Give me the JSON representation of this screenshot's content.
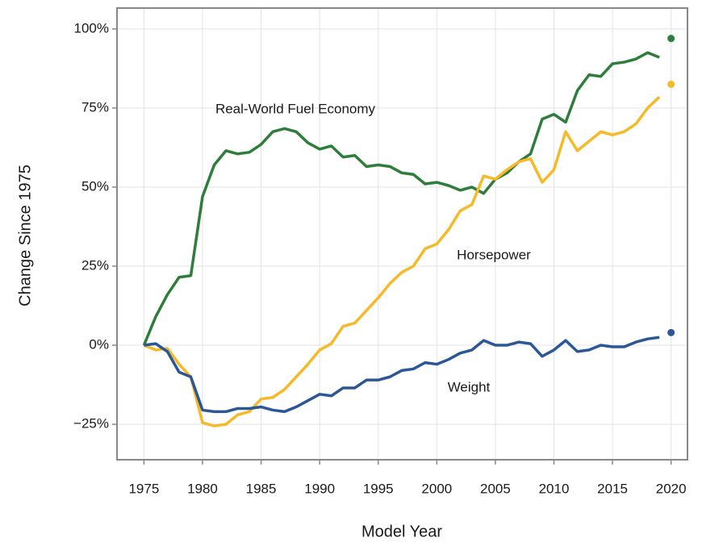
{
  "chart_data": {
    "type": "line",
    "xlabel": "Model Year",
    "ylabel": "Change Since 1975",
    "x": [
      1975,
      1976,
      1977,
      1978,
      1979,
      1980,
      1981,
      1982,
      1983,
      1984,
      1985,
      1986,
      1987,
      1988,
      1989,
      1990,
      1991,
      1992,
      1993,
      1994,
      1995,
      1996,
      1997,
      1998,
      1999,
      2000,
      2001,
      2002,
      2003,
      2004,
      2005,
      2006,
      2007,
      2008,
      2009,
      2010,
      2011,
      2012,
      2013,
      2014,
      2015,
      2016,
      2017,
      2018,
      2019
    ],
    "preliminary_x": 2020,
    "series": [
      {
        "name": "Real-World Fuel Economy",
        "color": "#2e7d3a",
        "values": [
          0,
          9,
          16,
          21.5,
          22,
          47,
          57,
          61.5,
          60.5,
          61,
          63.5,
          67.5,
          68.5,
          67.5,
          64,
          62,
          63,
          59.5,
          60,
          56.5,
          57,
          56.5,
          54.5,
          54,
          51,
          51.5,
          50.5,
          49,
          50,
          48,
          52.5,
          54.5,
          58,
          60.5,
          71.5,
          73,
          70.5,
          80.5,
          85.5,
          85,
          89,
          89.5,
          90.5,
          92.5,
          91
        ],
        "preliminary": 97
      },
      {
        "name": "Horsepower",
        "color": "#f6b927",
        "values": [
          0,
          -1.5,
          -1,
          -6,
          -10,
          -24.5,
          -25.5,
          -25,
          -22,
          -21,
          -17,
          -16.5,
          -14,
          -10,
          -6,
          -1.5,
          0.5,
          6,
          7,
          11,
          15,
          19.5,
          23,
          25,
          30.5,
          32,
          36.5,
          42.5,
          44.5,
          53.5,
          52.5,
          55.5,
          58,
          59,
          51.5,
          55.5,
          67.5,
          61.5,
          64.5,
          67.5,
          66.5,
          67.5,
          70,
          75,
          78.5
        ],
        "preliminary": 82.5
      },
      {
        "name": "Weight",
        "color": "#2b5797",
        "values": [
          0,
          0.5,
          -2,
          -8.5,
          -10,
          -20.5,
          -21,
          -21,
          -20,
          -20,
          -19.5,
          -20.5,
          -21,
          -19.5,
          -17.5,
          -15.5,
          -16,
          -13.5,
          -13.5,
          -11,
          -11,
          -10,
          -8,
          -7.5,
          -5.5,
          -6,
          -4.5,
          -2.5,
          -1.5,
          1.5,
          0,
          0,
          1,
          0.5,
          -3.5,
          -1.5,
          1.5,
          -2,
          -1.5,
          0,
          -0.5,
          -0.5,
          1,
          2,
          2.5
        ],
        "preliminary": 4
      }
    ],
    "xlim": [
      1972.7,
      2021.4
    ],
    "ylim": [
      -36.2,
      106.6
    ],
    "xticks": [
      1975,
      1980,
      1985,
      1990,
      1995,
      2000,
      2005,
      2010,
      2015,
      2020
    ],
    "yticks": [
      {
        "value": -25,
        "label": "−25%"
      },
      {
        "value": 0,
        "label": "0%"
      },
      {
        "value": 25,
        "label": "25%"
      },
      {
        "value": 50,
        "label": "50%"
      },
      {
        "value": 75,
        "label": "75%"
      },
      {
        "value": 100,
        "label": "100%"
      }
    ],
    "grid": true
  }
}
